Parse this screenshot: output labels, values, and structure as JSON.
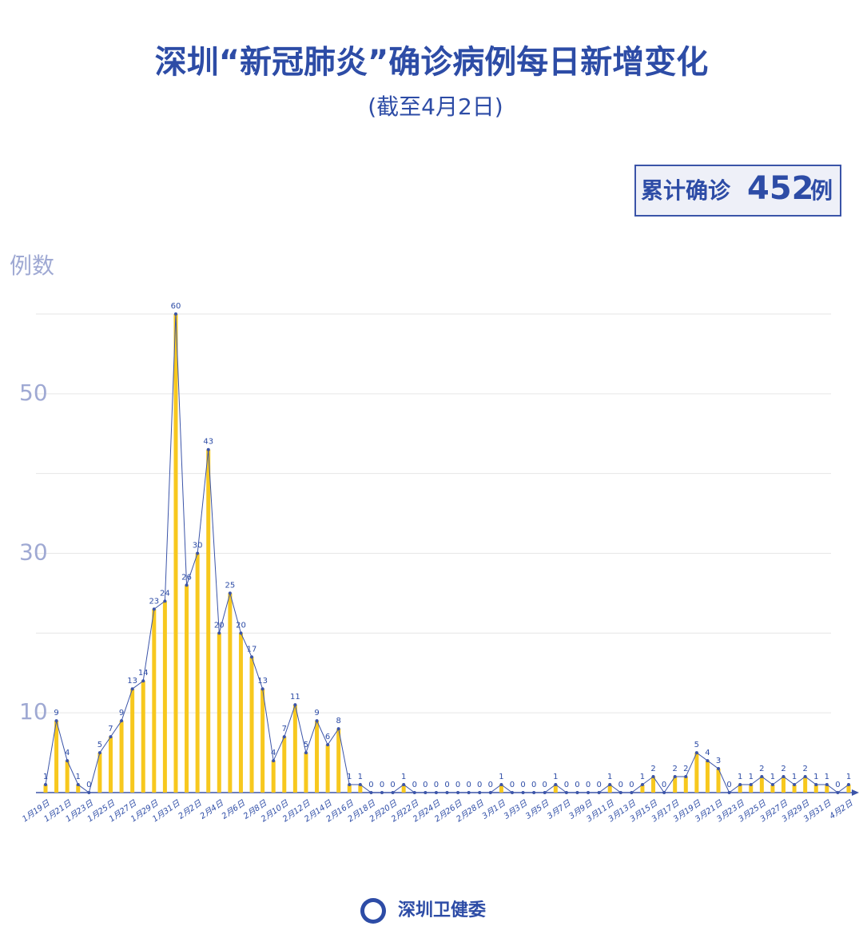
{
  "chart_data": {
    "type": "bar_line",
    "title": "深圳“新冠肺炎”确诊病例每日新增变化",
    "subtitle": "(截至4月2日)",
    "y_label": "例数",
    "total_label": "累计确诊",
    "total": 452,
    "total_unit": "例",
    "source": "深圳卫健委",
    "categories": [
      "1月19日",
      null,
      "1月21日",
      null,
      "1月23日",
      null,
      "1月25日",
      null,
      "1月27日",
      null,
      "1月29日",
      null,
      "1月31日",
      null,
      "2月2日",
      null,
      "2月4日",
      null,
      "2月6日",
      null,
      "2月8日",
      null,
      "2月10日",
      null,
      "2月12日",
      null,
      "2月14日",
      null,
      "2月16日",
      null,
      "2月18日",
      null,
      "2月20日",
      null,
      "2月22日",
      null,
      "2月24日",
      null,
      "2月26日",
      null,
      "2月28日",
      null,
      "3月1日",
      null,
      "3月3日",
      null,
      "3月5日",
      null,
      "3月7日",
      null,
      "3月9日",
      null,
      "3月11日",
      null,
      "3月13日",
      null,
      "3月15日",
      null,
      "3月17日",
      null,
      "3月19日",
      null,
      "3月21日",
      null,
      "3月23日",
      null,
      "3月25日",
      null,
      "3月27日",
      null,
      "3月29日",
      null,
      "3月31日",
      null,
      "4月2日"
    ],
    "values": [
      1,
      9,
      4,
      1,
      0,
      5,
      7,
      9,
      13,
      14,
      23,
      24,
      60,
      26,
      30,
      43,
      20,
      25,
      20,
      17,
      13,
      4,
      7,
      11,
      5,
      9,
      6,
      8,
      1,
      1,
      0,
      0,
      0,
      1,
      0,
      0,
      0,
      0,
      0,
      0,
      0,
      0,
      1,
      0,
      0,
      0,
      0,
      1,
      0,
      0,
      0,
      0,
      1,
      0,
      0,
      1,
      2,
      0,
      2,
      2,
      5,
      4,
      3,
      0,
      1,
      1,
      2,
      1,
      2,
      1,
      2,
      1,
      1,
      0,
      1
    ],
    "bar_color": "#f7c81e",
    "line_color": "#3b54a8",
    "ylim": [
      0,
      60
    ],
    "yticks": [
      10,
      30,
      50
    ],
    "minor_yticks": [
      20,
      40,
      60
    ],
    "grid": true
  }
}
